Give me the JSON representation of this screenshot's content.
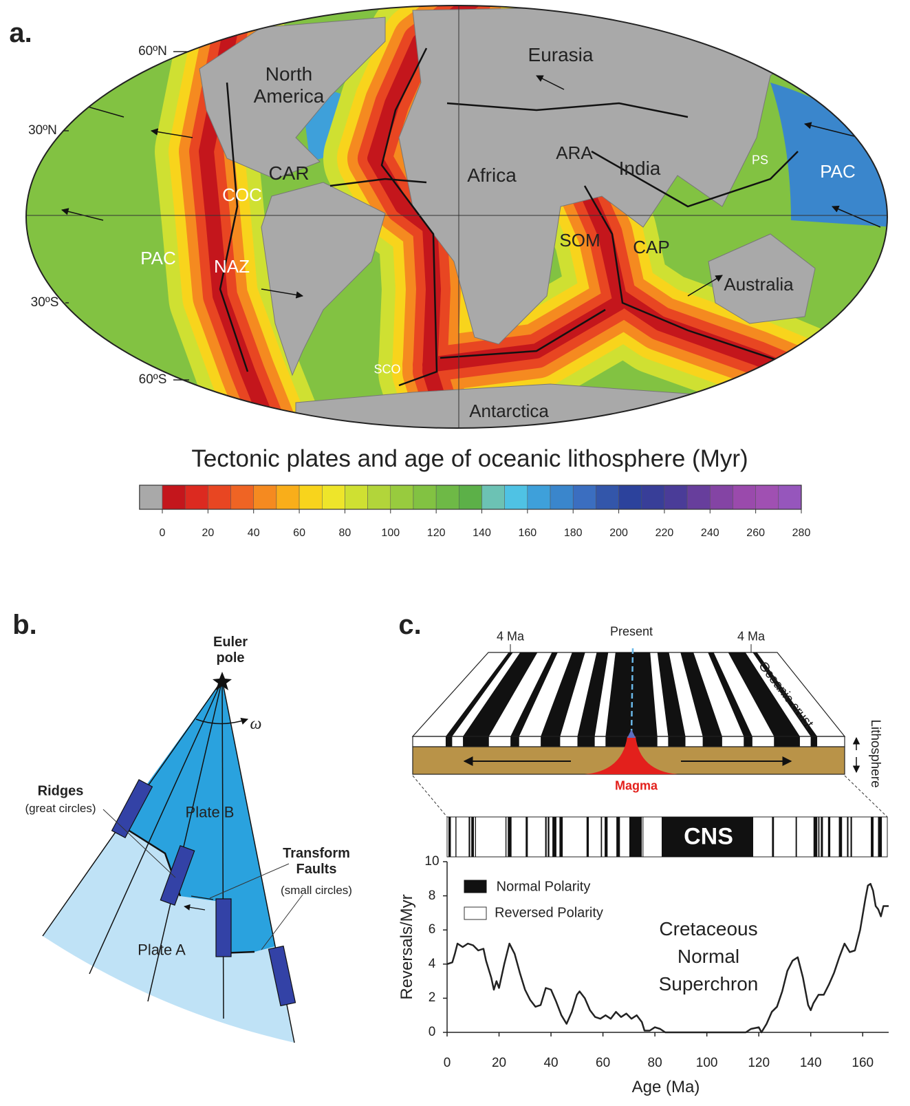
{
  "panel_a": {
    "label": "a.",
    "lat_labels": [
      "60ºN",
      "30ºN",
      "30ºS",
      "60ºS"
    ],
    "plate_labels": [
      "Eurasia",
      "North America",
      "CAR",
      "COC",
      "PAC",
      "NAZ",
      "Africa",
      "ARA",
      "India",
      "SOM",
      "CAP",
      "PS",
      "PAC",
      "Australia",
      "SCO",
      "Antarctica"
    ],
    "colorbar": {
      "title": "Tectonic plates and age of oceanic lithosphere (Myr)",
      "range": [
        0,
        280
      ],
      "ticks": [
        0,
        20,
        40,
        60,
        80,
        100,
        120,
        140,
        160,
        180,
        200,
        220,
        240,
        260,
        280
      ],
      "no_data_color": "#a9a9a9",
      "colors": [
        "#c4161c",
        "#dc2a20",
        "#e84622",
        "#ef6424",
        "#f58a20",
        "#f9ae1a",
        "#f8d41c",
        "#eee52a",
        "#cfe032",
        "#b2d53a",
        "#98cb3e",
        "#82c242",
        "#6eb946",
        "#5cb048",
        "#6cc2b4",
        "#4fc2e4",
        "#3ea0da",
        "#3a86cc",
        "#3b6ec0",
        "#3356aa",
        "#2c429c",
        "#383e98",
        "#4a3c98",
        "#673e9c",
        "#8444a4",
        "#9a4aac",
        "#a050b2",
        "#9656bc"
      ]
    }
  },
  "panel_b": {
    "label": "b.",
    "euler_pole": "Euler pole",
    "omega": "ω",
    "ridges": "Ridges",
    "ridges_note": "(great circles)",
    "plate_b": "Plate B",
    "transform": "Transform Faults",
    "transform_note": "(small circles)",
    "plate_a": "Plate A"
  },
  "panel_c": {
    "label": "c.",
    "left_age": "4 Ma",
    "present": "Present",
    "right_age": "4 Ma",
    "oceanic_crust": "Oceanic crust",
    "lithosphere": "Lithosphere",
    "magma": "Magma",
    "cns": "CNS",
    "legend": [
      "Normal Polarity",
      "Reversed Polarity"
    ],
    "annotation": "Cretaceous Normal Superchron"
  },
  "chart_data": {
    "type": "line",
    "xlabel": "Age (Ma)",
    "ylabel": "Reversals/Myr",
    "color": "#222222",
    "x": [
      0,
      2,
      3,
      4,
      6,
      8,
      10,
      12,
      14,
      15,
      17,
      18,
      19,
      20,
      22,
      24,
      26,
      28,
      30,
      32,
      34,
      36,
      38,
      40,
      42,
      44,
      46,
      48,
      50,
      51,
      53,
      55,
      57,
      59,
      61,
      63,
      65,
      67,
      69,
      71,
      73,
      75,
      76,
      78,
      80,
      82,
      84,
      100,
      115,
      117,
      120,
      121,
      123,
      125,
      127,
      129,
      131,
      133,
      135,
      137,
      139,
      140,
      141,
      143,
      145,
      147,
      149,
      151,
      153,
      155,
      157,
      159,
      161,
      162,
      163,
      164,
      165,
      166,
      167,
      168,
      170
    ],
    "values": [
      4.0,
      4.1,
      4.6,
      5.2,
      5.0,
      5.2,
      5.1,
      4.8,
      4.9,
      4.2,
      3.2,
      2.5,
      3.0,
      2.6,
      4.0,
      5.2,
      4.6,
      3.5,
      2.5,
      1.9,
      1.5,
      1.6,
      2.6,
      2.5,
      1.8,
      1.0,
      0.5,
      1.2,
      2.2,
      2.4,
      2.0,
      1.3,
      0.9,
      0.8,
      1.0,
      0.8,
      1.2,
      0.9,
      1.1,
      0.8,
      1.0,
      0.6,
      0.1,
      0.1,
      0.3,
      0.2,
      0,
      0,
      0,
      0.2,
      0.3,
      0,
      0.5,
      1.2,
      1.5,
      2.4,
      3.6,
      4.2,
      4.4,
      3.2,
      1.6,
      1.3,
      1.7,
      2.2,
      2.2,
      2.8,
      3.5,
      4.4,
      5.2,
      4.7,
      4.8,
      6.0,
      7.8,
      8.6,
      8.7,
      8.3,
      7.4,
      7.2,
      6.8,
      7.4,
      7.4
    ],
    "xlim": [
      0,
      170
    ],
    "ylim": [
      0,
      10
    ],
    "xticks": [
      0,
      20,
      40,
      60,
      80,
      100,
      120,
      140,
      160
    ],
    "yticks": [
      0,
      2,
      4,
      6,
      8,
      10
    ]
  }
}
